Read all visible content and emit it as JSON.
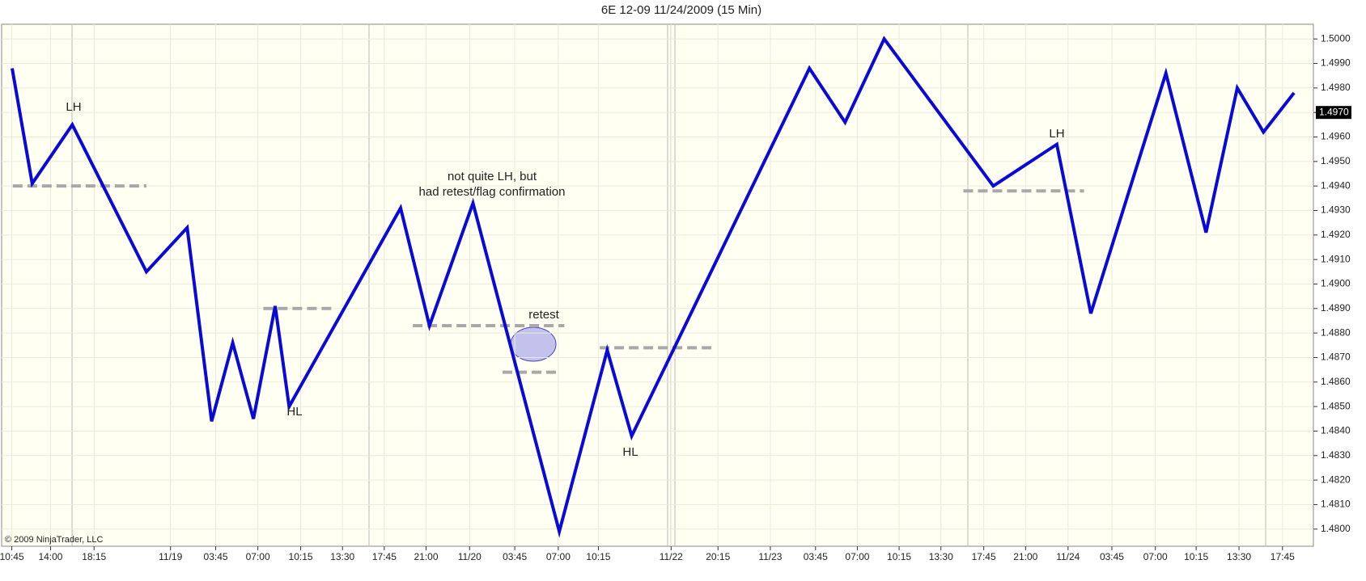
{
  "chart_data": {
    "type": "line",
    "title": "6E 12-09  11/24/2009 (15 Min)",
    "copyright": "© 2009 NinjaTrader, LLC",
    "x": [
      3.1,
      9,
      20.8,
      42.6,
      54.6,
      61.8,
      68,
      74.1,
      80.5,
      84.6,
      117.4,
      125.9,
      138.7,
      164.1,
      178.2,
      185.4,
      237.7,
      248.2,
      259.7,
      291.8,
      310.5,
      320.5,
      342.6,
      354.4,
      363.6,
      371.3,
      380.3
    ],
    "values": [
      1.4988,
      1.4941,
      1.4965,
      1.4905,
      1.4923,
      1.4844,
      1.4876,
      1.4845,
      1.4891,
      1.485,
      1.4931,
      1.4883,
      1.4933,
      1.4799,
      1.4873,
      1.4838,
      1.4988,
      1.4966,
      1.5,
      1.494,
      1.4957,
      1.4888,
      1.4986,
      1.4921,
      1.498,
      1.4962,
      1.4978
    ],
    "color": "#0a0ad8",
    "levels": [
      {
        "x": [
          3.3,
          42.6
        ],
        "value": 1.494
      },
      {
        "x": [
          77,
          98
        ],
        "value": 1.489
      },
      {
        "x": [
          121,
          165.6
        ],
        "value": 1.4883
      },
      {
        "x": [
          147.4,
          164.4
        ],
        "value": 1.4864
      },
      {
        "x": [
          176,
          209.5
        ],
        "value": 1.4874
      },
      {
        "x": [
          283,
          318.5
        ],
        "value": 1.4938
      }
    ],
    "level_color": "#a8a8a8",
    "annotations": [
      "LH",
      "HL",
      "not quite LH, but",
      "had retest/flag confirmation",
      "retest",
      "HL",
      "LH"
    ],
    "last_price": {
      "value": 1.497,
      "label": "1.4970"
    },
    "xlim": [
      0,
      386
    ],
    "ylim": [
      1.4793,
      1.5006
    ],
    "grid": true,
    "xticks": [
      {
        "value": 3,
        "label": "10:45"
      },
      {
        "value": 14.4,
        "label": "14:00"
      },
      {
        "value": 27.2,
        "label": "18:15"
      },
      {
        "value": 49.7,
        "label": "11/19"
      },
      {
        "value": 63,
        "label": "03:45"
      },
      {
        "value": 75.4,
        "label": "07:00"
      },
      {
        "value": 88,
        "label": "10:15"
      },
      {
        "value": 100.3,
        "label": "13:30"
      },
      {
        "value": 112.6,
        "label": "17:45"
      },
      {
        "value": 124.9,
        "label": "21:00"
      },
      {
        "value": 137.7,
        "label": "11/20"
      },
      {
        "value": 151,
        "label": "03:45"
      },
      {
        "value": 163.8,
        "label": "07:00"
      },
      {
        "value": 175.6,
        "label": "10:15"
      },
      {
        "value": 197,
        "label": "11/22"
      },
      {
        "value": 210.8,
        "label": "20:15"
      },
      {
        "value": 226.2,
        "label": "11/23"
      },
      {
        "value": 239.5,
        "label": "03:45"
      },
      {
        "value": 251.8,
        "label": "07:00"
      },
      {
        "value": 264.1,
        "label": "10:15"
      },
      {
        "value": 276.4,
        "label": "13:30"
      },
      {
        "value": 289,
        "label": "17:45"
      },
      {
        "value": 301.3,
        "label": "21:00"
      },
      {
        "value": 313.8,
        "label": "11/24"
      },
      {
        "value": 326.7,
        "label": "03:45"
      },
      {
        "value": 339.5,
        "label": "07:00"
      },
      {
        "value": 351.5,
        "label": "10:15"
      },
      {
        "value": 364.1,
        "label": "13:30"
      },
      {
        "value": 376.9,
        "label": "17:45"
      }
    ],
    "yticks": [
      {
        "value": 1.48,
        "label": "1.4800"
      },
      {
        "value": 1.481,
        "label": "1.4810"
      },
      {
        "value": 1.482,
        "label": "1.4820"
      },
      {
        "value": 1.483,
        "label": "1.4830"
      },
      {
        "value": 1.484,
        "label": "1.4840"
      },
      {
        "value": 1.485,
        "label": "1.4850"
      },
      {
        "value": 1.486,
        "label": "1.4860"
      },
      {
        "value": 1.487,
        "label": "1.4870"
      },
      {
        "value": 1.488,
        "label": "1.4880"
      },
      {
        "value": 1.489,
        "label": "1.4890"
      },
      {
        "value": 1.49,
        "label": "1.4900"
      },
      {
        "value": 1.491,
        "label": "1.4910"
      },
      {
        "value": 1.492,
        "label": "1.4920"
      },
      {
        "value": 1.493,
        "label": "1.4930"
      },
      {
        "value": 1.494,
        "label": "1.4940"
      },
      {
        "value": 1.495,
        "label": "1.4950"
      },
      {
        "value": 1.496,
        "label": "1.4960"
      },
      {
        "value": 1.497,
        "label": "1.4970"
      },
      {
        "value": 1.498,
        "label": "1.4980"
      },
      {
        "value": 1.499,
        "label": "1.4990"
      },
      {
        "value": 1.5,
        "label": "1.5000"
      }
    ]
  }
}
